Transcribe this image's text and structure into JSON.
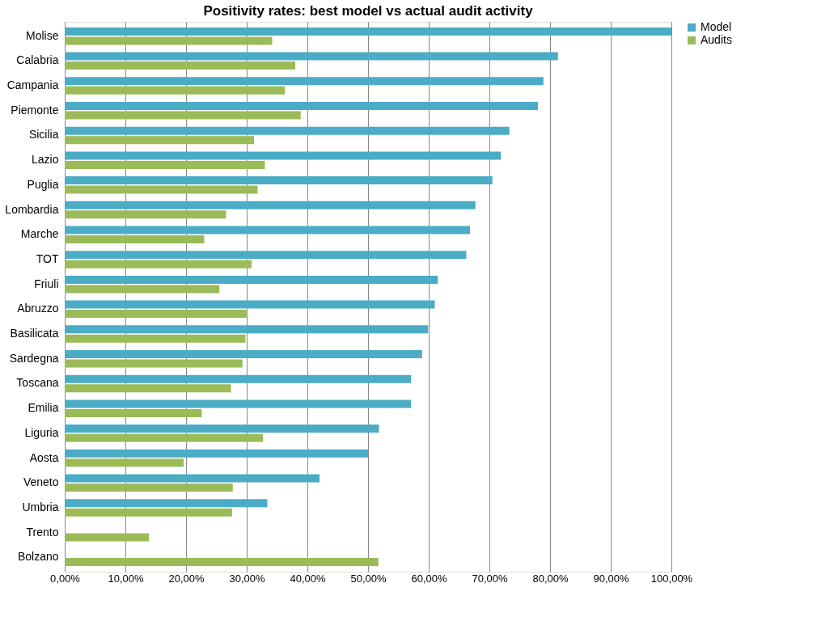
{
  "chart_data": {
    "type": "bar",
    "orientation": "horizontal",
    "title": "Positivity rates: best model vs actual audit activity",
    "categories": [
      "Molise",
      "Calabria",
      "Campania",
      "Piemonte",
      "Sicilia",
      "Lazio",
      "Puglia",
      "Lombardia",
      "Marche",
      "TOT",
      "Friuli",
      "Abruzzo",
      "Basilicata",
      "Sardegna",
      "Toscana",
      "Emilia",
      "Liguria",
      "Aosta",
      "Veneto",
      "Umbria",
      "Trento",
      "Bolzano"
    ],
    "series": [
      {
        "name": "Model",
        "color": "#4bacc6",
        "values": [
          100,
          81.3,
          78.9,
          78.0,
          73.3,
          71.9,
          70.5,
          67.7,
          66.8,
          66.2,
          61.5,
          61.0,
          59.9,
          58.9,
          57.1,
          57.1,
          51.8,
          50.0,
          42.0,
          33.4,
          null,
          null
        ]
      },
      {
        "name": "Audits",
        "color": "#9bbb59",
        "values": [
          34.2,
          38.0,
          36.3,
          38.9,
          31.2,
          33.0,
          31.8,
          26.6,
          23.0,
          30.8,
          25.5,
          30.1,
          29.8,
          29.3,
          27.4,
          22.6,
          32.7,
          19.6,
          27.7,
          27.6,
          13.9,
          51.7
        ]
      }
    ],
    "xlim": [
      0,
      100
    ],
    "xticks": [
      {
        "value": 0,
        "label": "0,00%"
      },
      {
        "value": 10,
        "label": "10,00%"
      },
      {
        "value": 20,
        "label": "20,00%"
      },
      {
        "value": 30,
        "label": "30,00%"
      },
      {
        "value": 40,
        "label": "40,00%"
      },
      {
        "value": 50,
        "label": "50,00%"
      },
      {
        "value": 60,
        "label": "60,00%"
      },
      {
        "value": 70,
        "label": "70,00%"
      },
      {
        "value": 80,
        "label": "80,00%"
      },
      {
        "value": 90,
        "label": "90,00%"
      },
      {
        "value": 100,
        "label": "100,00%"
      }
    ],
    "grid": "x",
    "legend": "right"
  }
}
